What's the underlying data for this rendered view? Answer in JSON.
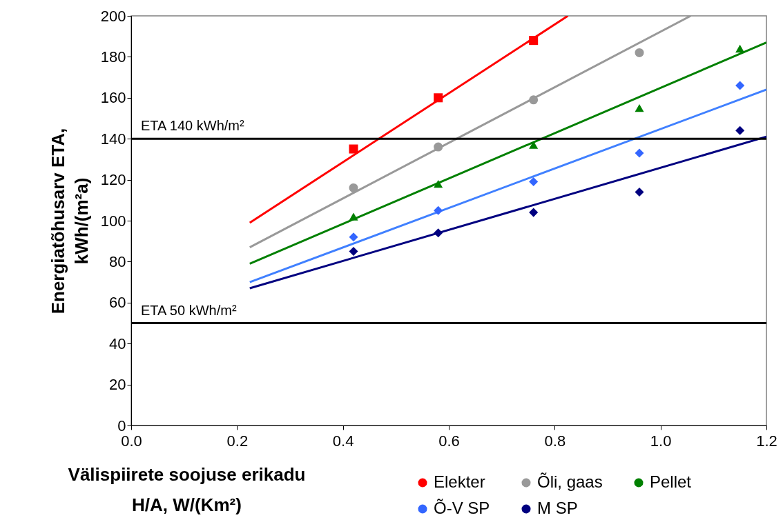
{
  "chart_data": {
    "type": "scatter",
    "xlabel": "Välispiirete soojuse erikadu\nH/A, W/(Km²)",
    "ylabel": "Energiatõhusarv ETA,\nkWh/(m²a)",
    "xlim": [
      0,
      1.2
    ],
    "xticks": [
      {
        "value": 0,
        "label": "0.0"
      },
      0.2,
      0.4,
      0.6,
      0.8,
      {
        "value": 1,
        "label": "1.0"
      },
      1.2
    ],
    "ylim": [
      0,
      200
    ],
    "yticks": [
      0,
      20,
      40,
      60,
      80,
      100,
      120,
      140,
      160,
      180,
      200
    ],
    "grid": false,
    "legend": "bottom right",
    "ref_lines": [
      {
        "axis": "y",
        "value": 140,
        "label": "ETA 140 kWh/m²",
        "color": "#000000"
      },
      {
        "axis": "y",
        "value": 50,
        "label": "ETA 50 kWh/m²",
        "color": "#000000"
      }
    ],
    "series": [
      {
        "name": "Elekter",
        "type": "scatter",
        "marker": "square",
        "color": "#ff0000",
        "x": [
          0.42,
          0.58,
          0.76
        ],
        "values": [
          135,
          160,
          188
        ]
      },
      {
        "name": "Õli, gaas",
        "type": "scatter",
        "marker": "circle",
        "color": "#999999",
        "x": [
          0.42,
          0.58,
          0.76,
          0.96
        ],
        "values": [
          116,
          136,
          159,
          182
        ]
      },
      {
        "name": "Pellet",
        "type": "scatter",
        "marker": "triangle",
        "color": "#008000",
        "x": [
          0.42,
          0.58,
          0.76,
          0.96,
          1.15
        ],
        "values": [
          102,
          118,
          137,
          155,
          184
        ]
      },
      {
        "name": "Õ-V SP",
        "type": "scatter",
        "marker": "diamond",
        "color": "#3366ff",
        "x": [
          0.42,
          0.58,
          0.76,
          0.96,
          1.15
        ],
        "values": [
          92,
          105,
          119,
          133,
          166
        ]
      },
      {
        "name": "M SP",
        "type": "scatter",
        "marker": "diamond",
        "color": "#000080",
        "x": [
          0.42,
          0.58,
          0.76,
          0.96,
          1.15
        ],
        "values": [
          85,
          94,
          104,
          114,
          144
        ]
      },
      {
        "type": "line",
        "marker": "none",
        "color": "#ff0000",
        "x": [
          0.224,
          0.825
        ],
        "values": [
          99,
          200
        ]
      },
      {
        "type": "line",
        "marker": "none",
        "color": "#999999",
        "x": [
          0.224,
          1.057
        ],
        "values": [
          87,
          200
        ]
      },
      {
        "type": "line",
        "marker": "none",
        "color": "#008000",
        "x": [
          0.224,
          1.2
        ],
        "values": [
          79,
          187
        ]
      },
      {
        "type": "line",
        "marker": "none",
        "color": "#4080ff",
        "x": [
          0.224,
          1.2
        ],
        "values": [
          70,
          164
        ]
      },
      {
        "type": "line",
        "marker": "none",
        "color": "#000080",
        "x": [
          0.224,
          1.2
        ],
        "values": [
          67,
          141
        ]
      }
    ]
  }
}
